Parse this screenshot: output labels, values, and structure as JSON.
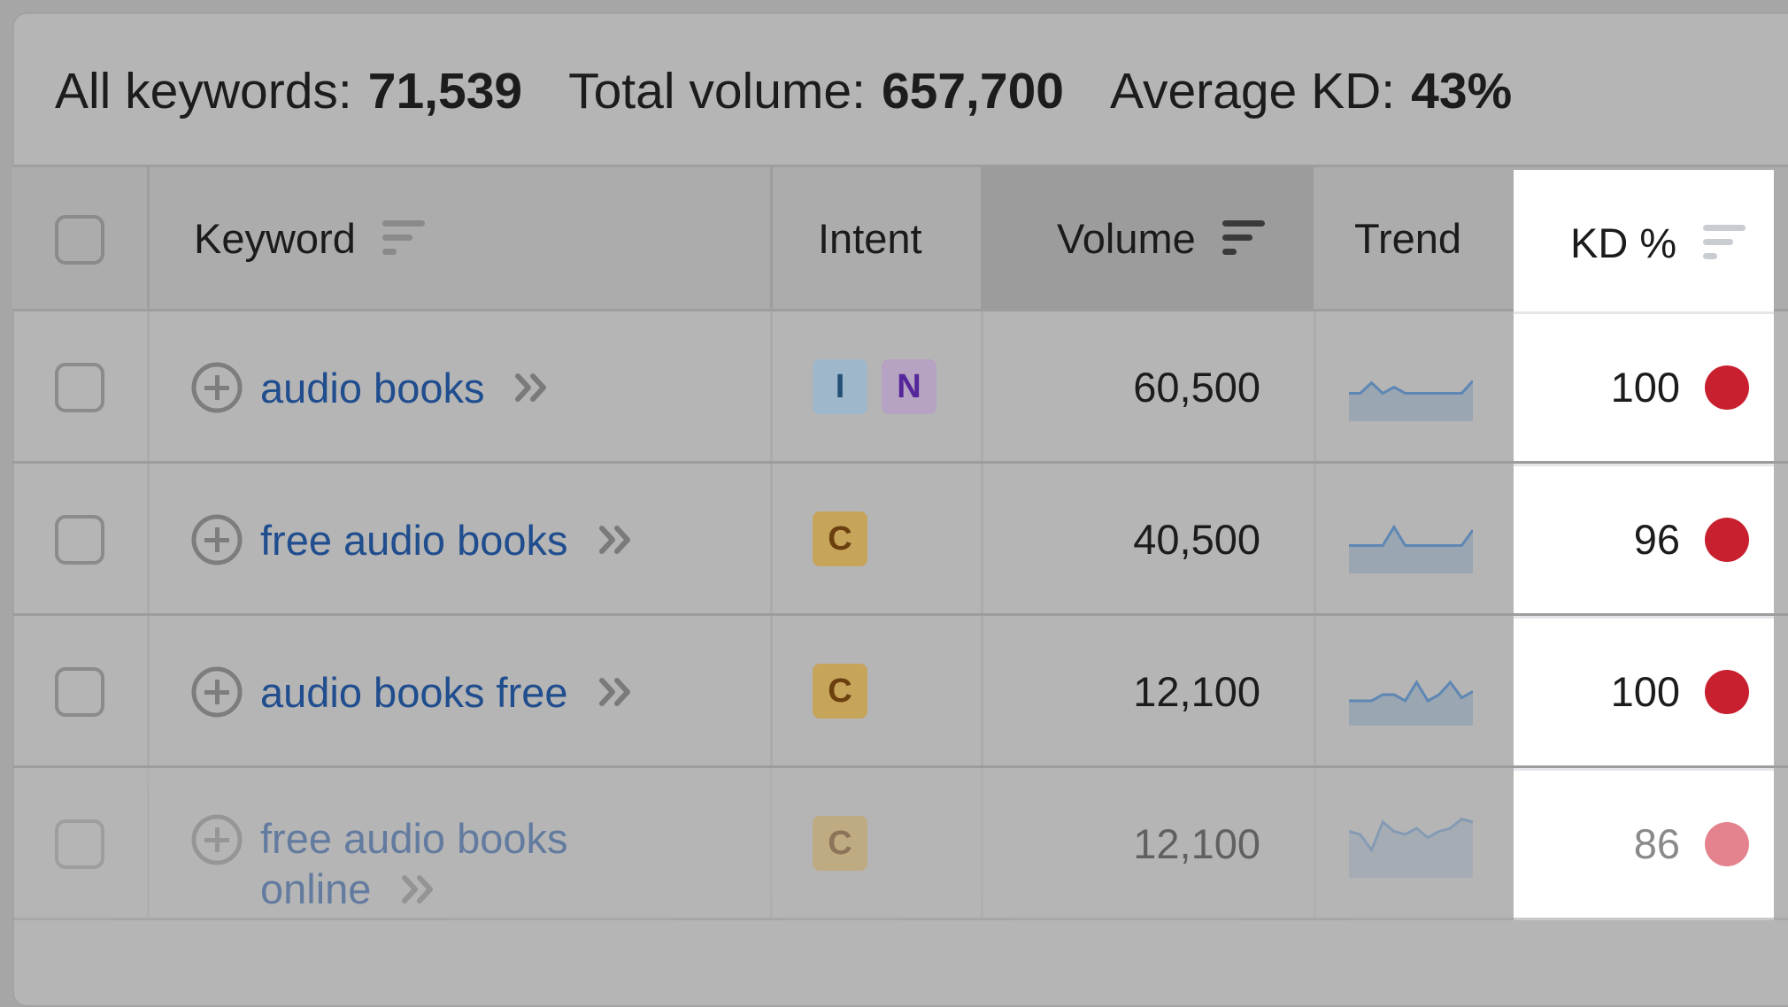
{
  "summary": {
    "all_keywords_label": "All keywords:",
    "all_keywords_value": "71,539",
    "total_volume_label": "Total volume:",
    "total_volume_value": "657,700",
    "average_kd_label": "Average KD:",
    "average_kd_value": "43%"
  },
  "header": {
    "keyword": "Keyword",
    "intent": "Intent",
    "volume": "Volume",
    "trend": "Trend",
    "kd": "KD %"
  },
  "rows": [
    {
      "keyword": "audio books",
      "keyword_line2": "",
      "intents": [
        "I",
        "N"
      ],
      "volume": "60,500",
      "kd": "100",
      "kd_color": "#c8202f",
      "trend": [
        0.55,
        0.55,
        0.38,
        0.55,
        0.45,
        0.55,
        0.55,
        0.55,
        0.55,
        0.55,
        0.55,
        0.35
      ]
    },
    {
      "keyword": "free audio books",
      "keyword_line2": "",
      "intents": [
        "C"
      ],
      "volume": "40,500",
      "kd": "96",
      "kd_color": "#c8202f",
      "trend": [
        0.55,
        0.55,
        0.55,
        0.55,
        0.25,
        0.55,
        0.55,
        0.55,
        0.55,
        0.55,
        0.55,
        0.3
      ]
    },
    {
      "keyword": "audio books free",
      "keyword_line2": "",
      "intents": [
        "C"
      ],
      "volume": "12,100",
      "kd": "100",
      "kd_color": "#c8202f",
      "trend": [
        0.6,
        0.6,
        0.6,
        0.5,
        0.5,
        0.6,
        0.3,
        0.6,
        0.5,
        0.3,
        0.55,
        0.45
      ]
    },
    {
      "keyword": "free audio books",
      "keyword_line2": "online",
      "intents": [
        "C"
      ],
      "volume": "12,100",
      "kd": "86",
      "kd_color": "#e4838e",
      "trend": [
        0.25,
        0.3,
        0.55,
        0.1,
        0.25,
        0.3,
        0.2,
        0.35,
        0.25,
        0.2,
        0.05,
        0.1
      ]
    }
  ],
  "intent_colors": {
    "I": {
      "bg": "#9eb7cb",
      "fg": "#254f77"
    },
    "N": {
      "bg": "#b6a2c2",
      "fg": "#55269a"
    },
    "C": {
      "bg": "#c6a45a",
      "fg": "#6b3f0f"
    }
  }
}
